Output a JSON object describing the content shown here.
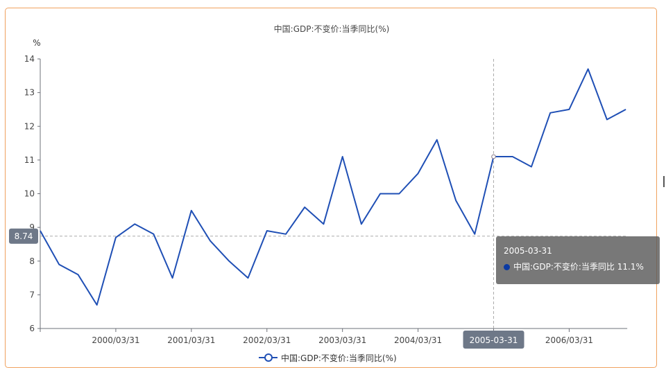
{
  "chart_data": {
    "type": "line",
    "title": "中国:GDP:不变价:当季同比(%)",
    "ylabel": "%",
    "xlabel": "",
    "ylim": [
      6,
      14
    ],
    "yticks": [
      6,
      7,
      8,
      9,
      10,
      11,
      12,
      13,
      14
    ],
    "xtick_labels": [
      "2000/03/31",
      "2001/03/31",
      "2002/03/31",
      "2003/03/31",
      "2004/03/31",
      "2005-03-31",
      "2006/03/31"
    ],
    "xtick_indices": [
      4,
      8,
      12,
      16,
      20,
      24,
      28
    ],
    "x": [
      "1999-03-31",
      "1999-06-30",
      "1999-09-30",
      "1999-12-31",
      "2000-03-31",
      "2000-06-30",
      "2000-09-30",
      "2000-12-31",
      "2001-03-31",
      "2001-06-30",
      "2001-09-30",
      "2001-12-31",
      "2002-03-31",
      "2002-06-30",
      "2002-09-30",
      "2002-12-31",
      "2003-03-31",
      "2003-06-30",
      "2003-09-30",
      "2003-12-31",
      "2004-03-31",
      "2004-06-30",
      "2004-09-30",
      "2004-12-31",
      "2005-03-31",
      "2005-06-30",
      "2005-09-30",
      "2005-12-31",
      "2006-03-31",
      "2006-06-30",
      "2006-09-30",
      "2006-12-31"
    ],
    "series": [
      {
        "name": "中国:GDP:不变价:当季同比(%)",
        "color": "#1f4fb5",
        "values": [
          8.9,
          7.9,
          7.6,
          6.7,
          8.7,
          9.1,
          8.8,
          7.5,
          9.5,
          8.6,
          8.0,
          7.5,
          8.9,
          8.8,
          9.6,
          9.1,
          11.1,
          9.1,
          10.0,
          10.0,
          10.6,
          11.6,
          9.8,
          8.8,
          11.1,
          11.1,
          10.8,
          12.4,
          12.5,
          13.7,
          12.2,
          12.5
        ]
      }
    ],
    "grid": false,
    "legend": "bottom-center",
    "crosshair": {
      "x_index": 24,
      "x_label": "2005-03-31",
      "y_value": 8.74,
      "y_label": "8.74"
    }
  },
  "tooltip": {
    "date": "2005-03-31",
    "series_name": "中国:GDP:不变价:当季同比",
    "value": "11.1%",
    "dot_color": "#0b3aa3"
  }
}
